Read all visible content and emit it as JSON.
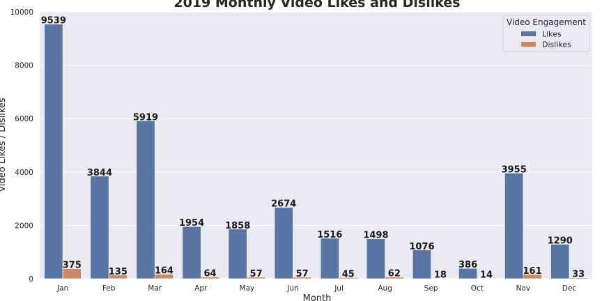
{
  "chart_data": {
    "type": "bar",
    "title": "2019 Monthly Video Likes and Dislikes",
    "xlabel": "Month",
    "ylabel": "Video Likes / Dislikes",
    "categories": [
      "Jan",
      "Feb",
      "Mar",
      "Apr",
      "May",
      "Jun",
      "Jul",
      "Aug",
      "Sep",
      "Oct",
      "Nov",
      "Dec"
    ],
    "ylim": [
      0,
      10000
    ],
    "yticks": [
      0,
      2000,
      4000,
      6000,
      8000,
      10000
    ],
    "grid": true,
    "legend": {
      "title": "Video Engagement",
      "placement": "top-right"
    },
    "series": [
      {
        "name": "Likes",
        "color": "#5975a4",
        "values": [
          9539,
          3844,
          5919,
          1954,
          1858,
          2674,
          1516,
          1498,
          1076,
          386,
          3955,
          1290
        ]
      },
      {
        "name": "Dislikes",
        "color": "#cc8963",
        "values": [
          375,
          135,
          164,
          64,
          57,
          57,
          45,
          62,
          18,
          14,
          161,
          33
        ]
      }
    ],
    "background": "#eaeaf2"
  }
}
